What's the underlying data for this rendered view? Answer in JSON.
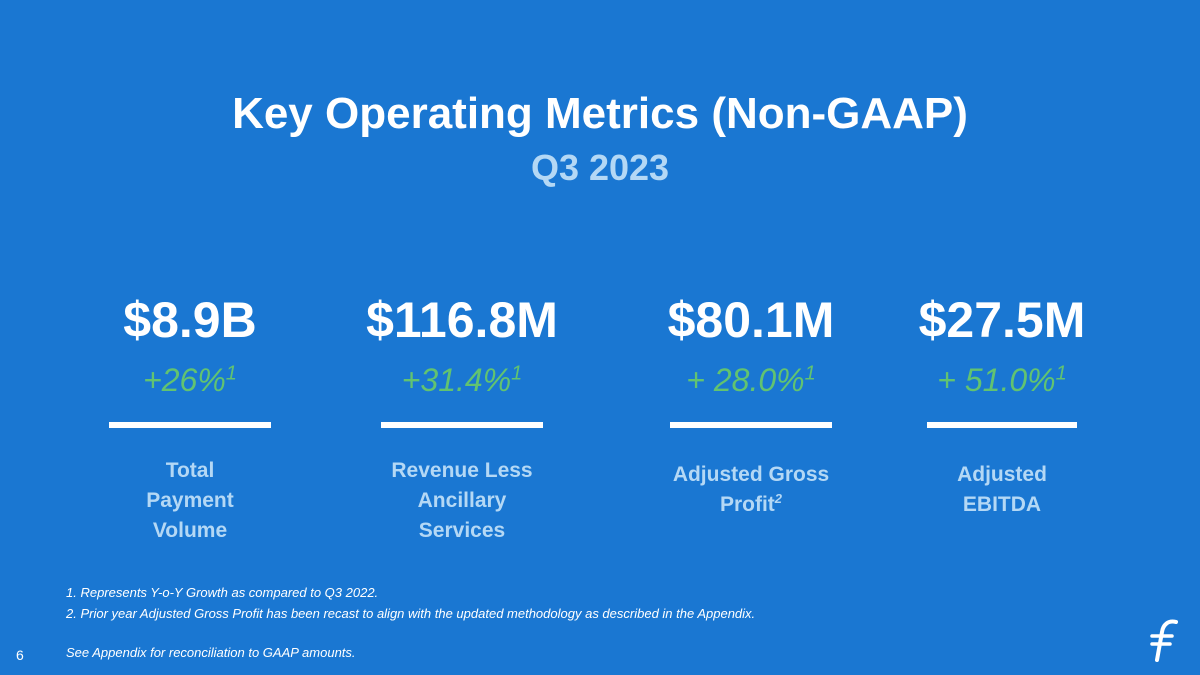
{
  "slide": {
    "title": "Key Operating Metrics (Non-GAAP)",
    "subtitle": "Q3 2023",
    "page_number": "6",
    "logo_icon": "flywire-logo-icon",
    "colors": {
      "background": "#1a77d2",
      "value": "#ffffff",
      "growth": "#62c370",
      "label": "#b4d8f5"
    }
  },
  "metrics": [
    {
      "value": "$8.9B",
      "growth": "+26%",
      "growth_sup": "1",
      "label_lines": [
        "Total",
        "Payment",
        "Volume"
      ],
      "label_sup": ""
    },
    {
      "value": "$116.8M",
      "growth": "+31.4%",
      "growth_sup": "1",
      "label_lines": [
        "Revenue Less",
        "Ancillary",
        "Services"
      ],
      "label_sup": ""
    },
    {
      "value": "$80.1M",
      "growth": "+ 28.0%",
      "growth_sup": "1",
      "label_lines": [
        "Adjusted Gross",
        "Profit"
      ],
      "label_sup": "2"
    },
    {
      "value": "$27.5M",
      "growth": "+ 51.0%",
      "growth_sup": "1",
      "label_lines": [
        "Adjusted",
        "EBITDA"
      ],
      "label_sup": ""
    }
  ],
  "footnotes": {
    "items": [
      "1. Represents Y-o-Y Growth as compared to Q3 2022.",
      "2. Prior year Adjusted Gross Profit has been recast to align with the updated methodology as described in the Appendix."
    ],
    "see_appendix": "See Appendix for reconciliation to GAAP amounts."
  }
}
